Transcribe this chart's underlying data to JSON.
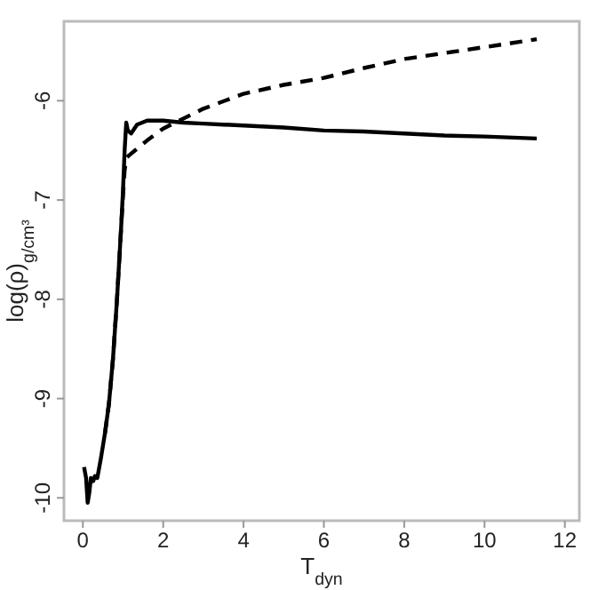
{
  "chart_data": {
    "type": "line",
    "xlabel": "T$_{dyn}$",
    "ylabel": "log(ρ)$_{g/cm³}$",
    "xlim": [
      -0.47,
      12.36
    ],
    "ylim": [
      -10.23,
      -5.2
    ],
    "xticks": [
      0,
      2,
      4,
      6,
      8,
      10,
      12
    ],
    "yticks": [
      -10,
      -9,
      -8,
      -7,
      -6
    ],
    "grid": false,
    "series": [
      {
        "color": "#000000",
        "line_style": "solid",
        "x": [
          0.03,
          0.08,
          0.12,
          0.16,
          0.2,
          0.26,
          0.3,
          0.36,
          0.45,
          0.55,
          0.65,
          0.75,
          0.85,
          0.95,
          1.0,
          1.04,
          1.08,
          1.12,
          1.2,
          1.35,
          1.6,
          2.0,
          2.5,
          3,
          4,
          5,
          6,
          7,
          8,
          9,
          10,
          11.3
        ],
        "values": [
          -9.69,
          -9.8,
          -10.05,
          -9.95,
          -9.8,
          -9.83,
          -9.78,
          -9.8,
          -9.6,
          -9.35,
          -9.05,
          -8.6,
          -8.0,
          -7.3,
          -6.9,
          -6.5,
          -6.22,
          -6.3,
          -6.33,
          -6.24,
          -6.2,
          -6.2,
          -6.22,
          -6.23,
          -6.25,
          -6.27,
          -6.3,
          -6.31,
          -6.33,
          -6.35,
          -6.36,
          -6.38
        ]
      },
      {
        "color": "#000000",
        "line_style": "dashed",
        "x": [
          0.55,
          0.65,
          0.75,
          0.85,
          0.95,
          1.0,
          1.04,
          1.08,
          1.15,
          1.3,
          1.6,
          2.0,
          2.4,
          3,
          4,
          5,
          6,
          7,
          8,
          9,
          10,
          11.3
        ],
        "values": [
          -9.35,
          -9.05,
          -8.6,
          -8.0,
          -7.3,
          -6.95,
          -6.7,
          -6.58,
          -6.55,
          -6.5,
          -6.4,
          -6.28,
          -6.2,
          -6.08,
          -5.93,
          -5.84,
          -5.77,
          -5.67,
          -5.58,
          -5.52,
          -5.46,
          -5.38
        ]
      }
    ]
  }
}
